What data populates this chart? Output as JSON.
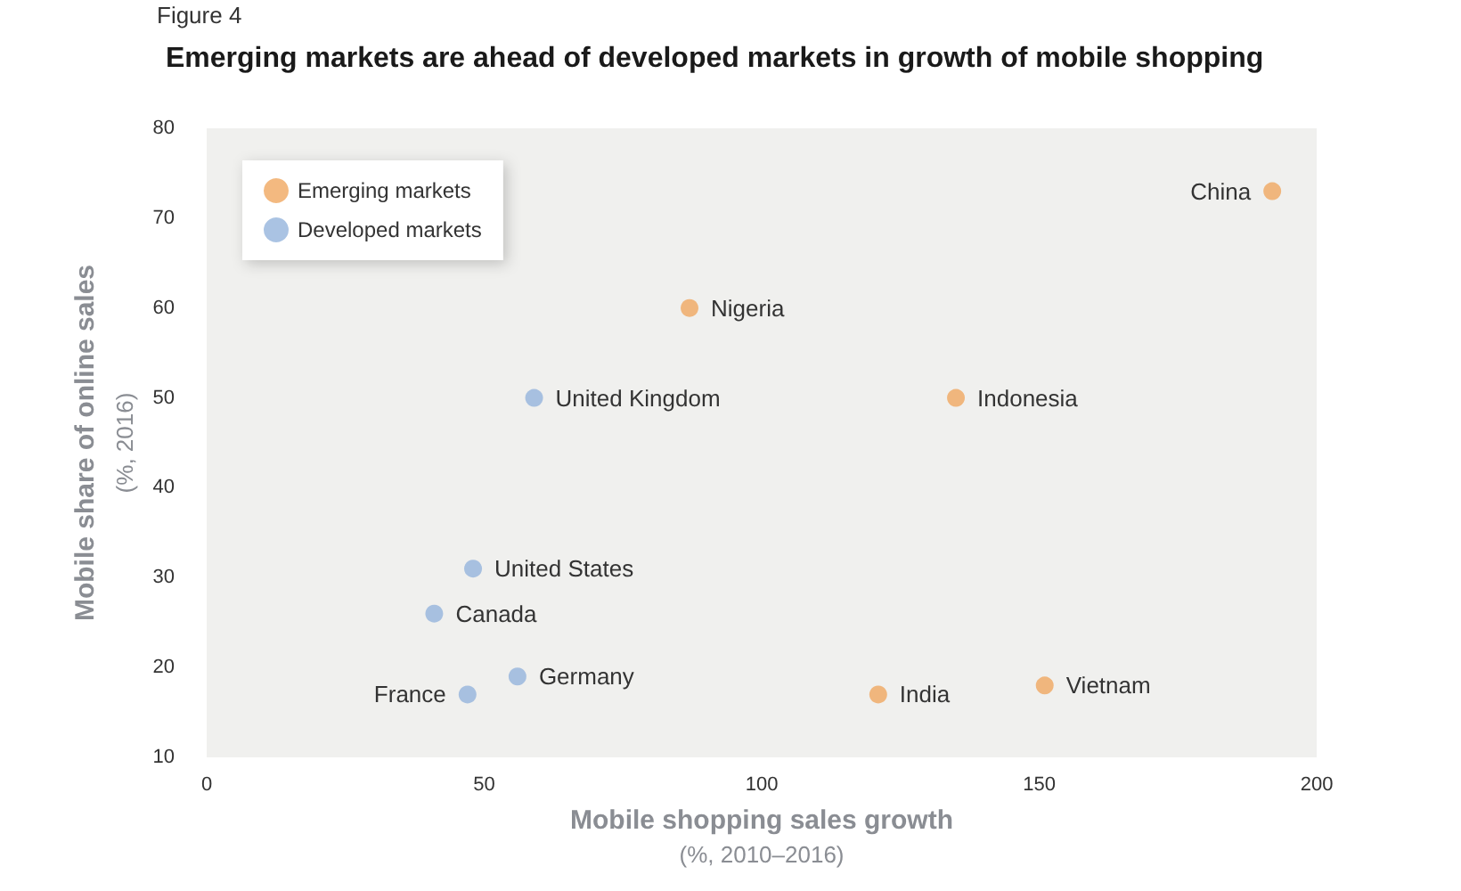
{
  "chart_data": {
    "type": "scatter",
    "title": "Emerging markets are ahead of developed markets in growth of mobile shopping",
    "xlabel": "Mobile shopping sales growth\n(%, 2010–2016)",
    "ylabel": "Mobile share of online sales\n(%, 2016)",
    "series": [
      {
        "name": "Emerging markets",
        "color": "#f0a860",
        "x": [
          192,
          87,
          135,
          121,
          151
        ],
        "values": [
          73,
          60,
          50,
          17,
          18
        ]
      },
      {
        "name": "Developed markets",
        "color": "#95b4dc",
        "x": [
          59,
          48,
          41,
          56,
          47
        ],
        "values": [
          50,
          31,
          26,
          19,
          17
        ]
      }
    ],
    "annotations": [
      "Figure 4",
      {
        "text": "China",
        "x": 192,
        "y": 73
      },
      {
        "text": "Nigeria",
        "x": 87,
        "y": 60
      },
      {
        "text": "Indonesia",
        "x": 135,
        "y": 50
      },
      {
        "text": "India",
        "x": 121,
        "y": 17
      },
      {
        "text": "Vietnam",
        "x": 151,
        "y": 18
      },
      {
        "text": "United Kingdom",
        "x": 59,
        "y": 50
      },
      {
        "text": "United States",
        "x": 48,
        "y": 31
      },
      {
        "text": "Canada",
        "x": 41,
        "y": 26
      },
      {
        "text": "Germany",
        "x": 56,
        "y": 19
      },
      {
        "text": "France",
        "x": 47,
        "y": 17
      }
    ],
    "xlim": [
      0,
      200
    ],
    "xticks": [
      0,
      50,
      100,
      150,
      200
    ],
    "ylim": [
      10,
      80
    ],
    "yticks": [
      10,
      20,
      30,
      40,
      50,
      60,
      70,
      80
    ],
    "grid": false,
    "legend": "top left",
    "marker": "circle"
  }
}
